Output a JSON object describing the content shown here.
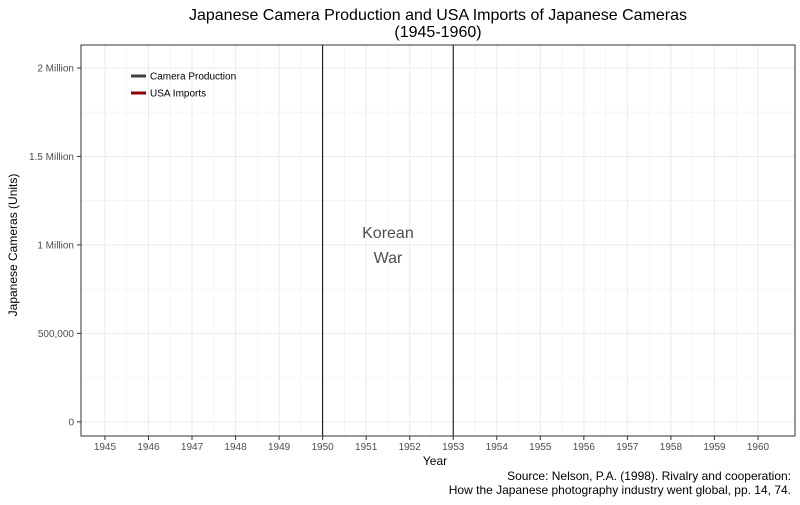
{
  "chart_data": {
    "type": "line",
    "title": "Japanese Camera Production and USA Imports of Japanese Cameras",
    "subtitle": "(1945-1960)",
    "xlabel": "Year",
    "ylabel": "Japanese Cameras (Units)",
    "x_ticks": [
      "1945",
      "1946",
      "1947",
      "1948",
      "1949",
      "1950",
      "1951",
      "1952",
      "1953",
      "1954",
      "1955",
      "1956",
      "1957",
      "1958",
      "1959",
      "1960"
    ],
    "y_ticks": [
      {
        "value": 0,
        "label": "0"
      },
      {
        "value": 500000,
        "label": "500,000"
      },
      {
        "value": 1000000,
        "label": "1 Million"
      },
      {
        "value": 1500000,
        "label": "1.5 Million"
      },
      {
        "value": 2000000,
        "label": "2 Million"
      }
    ],
    "xlim": [
      1944.45,
      1960.85
    ],
    "ylim": [
      -80000,
      2130000
    ],
    "grid": true,
    "legend_position": "top-left",
    "series": [
      {
        "name": "Camera Production",
        "color": "#404040",
        "points": []
      },
      {
        "name": "USA Imports",
        "color": "#8b0000",
        "points": []
      }
    ],
    "reference_lines": [
      {
        "x": 1950,
        "color": "#000000"
      },
      {
        "x": 1953,
        "color": "#000000"
      }
    ],
    "annotation": {
      "lines": [
        "Korean",
        "War"
      ],
      "x": 1951.5,
      "y": 1000000
    },
    "caption": [
      "Source: Nelson, P.A. (1998). Rivalry and cooperation:",
      "How the Japanese photography industry went global, pp. 14, 74."
    ]
  }
}
